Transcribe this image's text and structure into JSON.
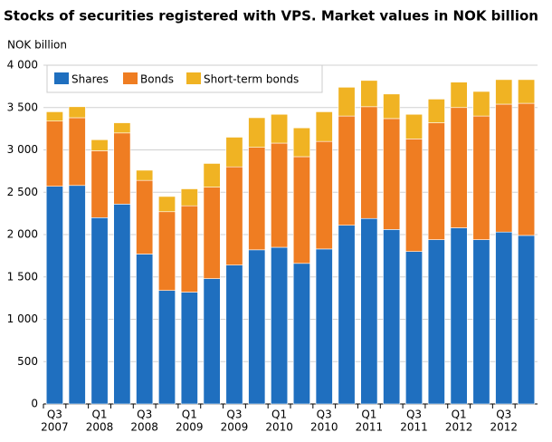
{
  "chart_data": {
    "type": "stacked-bar",
    "title": "Stocks of securities registered with VPS. Market values in NOK billion",
    "y_label": "NOK billion",
    "categories": [
      {
        "quarter": "Q3",
        "year": "2007"
      },
      null,
      {
        "quarter": "Q1",
        "year": "2008"
      },
      null,
      {
        "quarter": "Q3",
        "year": "2008"
      },
      null,
      {
        "quarter": "Q1",
        "year": "2009"
      },
      null,
      {
        "quarter": "Q3",
        "year": "2009"
      },
      null,
      {
        "quarter": "Q1",
        "year": "2010"
      },
      null,
      {
        "quarter": "Q3",
        "year": "2010"
      },
      null,
      {
        "quarter": "Q1",
        "year": "2011"
      },
      null,
      {
        "quarter": "Q3",
        "year": "2011"
      },
      null,
      {
        "quarter": "Q1",
        "year": "2012"
      },
      null,
      {
        "quarter": "Q3",
        "year": "2012"
      },
      null
    ],
    "series": [
      {
        "name": "Shares",
        "color": "#1f6fbf",
        "values": [
          2570,
          2580,
          2200,
          2360,
          1770,
          1340,
          1320,
          1480,
          1640,
          1820,
          1850,
          1660,
          1830,
          2110,
          2190,
          2060,
          1800,
          1940,
          2080,
          1940,
          2030,
          1990
        ]
      },
      {
        "name": "Bonds",
        "color": "#ef7d22",
        "values": [
          770,
          800,
          790,
          840,
          870,
          930,
          1020,
          1080,
          1160,
          1210,
          1230,
          1260,
          1270,
          1290,
          1320,
          1310,
          1330,
          1380,
          1420,
          1460,
          1510,
          1560
        ]
      },
      {
        "name": "Short-term bonds",
        "color": "#f0b323",
        "values": [
          110,
          130,
          130,
          120,
          120,
          180,
          200,
          280,
          350,
          350,
          340,
          340,
          350,
          340,
          310,
          290,
          290,
          280,
          300,
          290,
          290,
          280
        ]
      }
    ],
    "ylim": [
      0,
      4000
    ],
    "yticks": [
      0,
      500,
      {
        "value": 1000,
        "label": "1 000"
      },
      {
        "value": 1500,
        "label": "1 500"
      },
      {
        "value": 2000,
        "label": "2 000"
      },
      {
        "value": 2500,
        "label": "2 500"
      },
      {
        "value": 3000,
        "label": "3 000"
      },
      {
        "value": 3500,
        "label": "3 500"
      },
      {
        "value": 4000,
        "label": "4 000"
      }
    ],
    "grid": true,
    "legend": "top-left"
  }
}
